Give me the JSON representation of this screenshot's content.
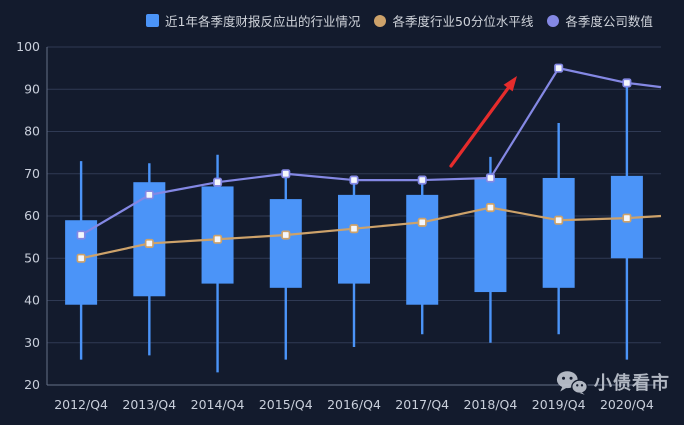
{
  "legend": {
    "items": [
      {
        "label": "近1年各季度财报反应出的行业情况",
        "marker": "square"
      },
      {
        "label": "各季度行业50分位水平线",
        "marker": "circle"
      },
      {
        "label": "各季度公司数值",
        "marker": "circle"
      }
    ]
  },
  "watermark": {
    "text": "小债看市",
    "icon": "wechat-icon"
  },
  "colors": {
    "background": "#131B2D",
    "grid_line": "#2F3A54",
    "axis_line": "#667088",
    "axis_label": "#C9CFDB",
    "legend_text": "#CFD3DA",
    "candle": "#4B94F8",
    "percentile_line": "#CDA26A",
    "company_line": "#8488E4",
    "dot_fill": "#F4F7FC",
    "arrow": "#E62C2C",
    "watermark": "#BFC5CF"
  },
  "chart_data": {
    "type": "candlestick",
    "title": "",
    "categories": [
      "2012/Q4",
      "2013/Q4",
      "2014/Q4",
      "2015/Q4",
      "2016/Q4",
      "2017/Q4",
      "2018/Q4",
      "2019/Q4",
      "2020/Q4"
    ],
    "y_axis": {
      "min": 20,
      "max": 100,
      "step": 10
    },
    "grid": true,
    "legend_position": "top",
    "series": [
      {
        "name": "近1年各季度财报反应出的行业情况",
        "type": "candlestick",
        "value_format": "[low, box_bottom, box_top, high]",
        "values": [
          [
            26,
            39,
            59,
            73
          ],
          [
            27,
            41,
            68,
            72.5
          ],
          [
            23,
            44,
            67,
            74.5
          ],
          [
            26,
            43,
            64,
            70
          ],
          [
            29,
            44,
            65,
            69
          ],
          [
            32,
            39,
            65,
            68.5
          ],
          [
            30,
            42,
            69,
            74
          ],
          [
            32,
            43,
            69,
            82
          ],
          [
            26,
            50,
            69.5,
            91.5
          ]
        ]
      },
      {
        "name": "各季度行业50分位水平线",
        "type": "line",
        "values": [
          50,
          53.5,
          54.5,
          55.5,
          57,
          58.5,
          62,
          59,
          59.5
        ],
        "right_edge_value": 60
      },
      {
        "name": "各季度公司数值",
        "type": "line",
        "values": [
          55.5,
          65,
          68,
          70,
          68.5,
          68.5,
          69,
          95,
          91.5
        ],
        "right_edge_value": 90.5
      }
    ],
    "annotation_arrow": {
      "from": [
        451,
        166
      ],
      "to": [
        517,
        76
      ]
    }
  }
}
